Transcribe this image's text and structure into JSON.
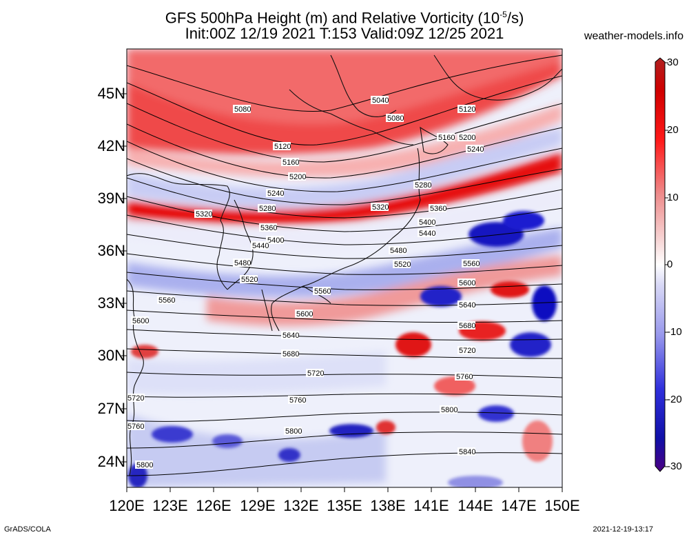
{
  "title": {
    "line1_a": "GFS 500hPa Height (m) and Relative Vorticity (10",
    "line1_sup": "-5",
    "line1_b": "/s)",
    "line2": "Init:00Z 12/19 2021 T:153 Valid:09Z 12/25 2021"
  },
  "site": "weather-models.info",
  "credit": "GrADS/COLA",
  "timestamp": "2021-12-19-13:17",
  "colors": {
    "strong_pos": "#e00000",
    "strong_neg": "#0000cc",
    "neutral": "#f4f4ff",
    "contour": "#000000"
  },
  "lat_labels": [
    "45N",
    "42N",
    "39N",
    "36N",
    "33N",
    "30N",
    "27N",
    "24N"
  ],
  "lon_labels": [
    "120E",
    "123E",
    "126E",
    "129E",
    "132E",
    "135E",
    "138E",
    "141E",
    "144E",
    "147E",
    "150E"
  ],
  "colorbar": {
    "ticks": [
      "30",
      "20",
      "10",
      "0",
      "-10",
      "-20",
      "-30"
    ],
    "colors": [
      "#4b0082",
      "#1010c8",
      "#4848e0",
      "#9898ec",
      "#d8d8f6",
      "#ffffff",
      "#f6d4d4",
      "#ee8c8c",
      "#ff1a1a",
      "#d00000",
      "#b02020"
    ]
  },
  "contours": [
    "5040",
    "5080",
    "5120",
    "5160",
    "5200",
    "5240",
    "5280",
    "5320",
    "5360",
    "5400",
    "5440",
    "5480",
    "5520",
    "5560",
    "5600",
    "5640",
    "5680",
    "5720",
    "5760",
    "5800",
    "5840"
  ]
}
